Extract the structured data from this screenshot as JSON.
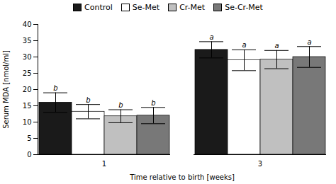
{
  "chart_data": {
    "type": "bar",
    "xlabel": "Time relative to birth [weeks]",
    "ylabel": "Serum MDA [nmol/ml]",
    "categories": [
      "1",
      "3"
    ],
    "series": [
      {
        "name": "Control",
        "color": "#1a1a1a",
        "values": [
          16.0,
          32.2
        ],
        "errors": [
          3.0,
          2.5
        ],
        "significance": [
          "b",
          "a"
        ]
      },
      {
        "name": "Se-Met",
        "color": "#ffffff",
        "values": [
          13.2,
          29.0
        ],
        "errors": [
          2.2,
          3.2
        ],
        "significance": [
          "b",
          "a"
        ]
      },
      {
        "name": "Cr-Met",
        "color": "#c0c0c0",
        "values": [
          11.8,
          29.2
        ],
        "errors": [
          2.0,
          2.8
        ],
        "significance": [
          "b",
          "a"
        ]
      },
      {
        "name": "Se-Cr-Met",
        "color": "#787878",
        "values": [
          12.0,
          30.0
        ],
        "errors": [
          2.5,
          3.2
        ],
        "significance": [
          "b",
          "a"
        ]
      }
    ],
    "ylim": [
      0,
      40
    ],
    "yticks": [
      0,
      5,
      10,
      15,
      20,
      25,
      30,
      35,
      40
    ],
    "legend": "top"
  }
}
